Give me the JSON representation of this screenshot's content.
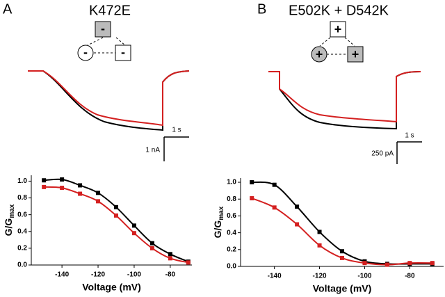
{
  "panels": [
    {
      "letter": "A",
      "title": "K472E",
      "signs": [
        "-",
        "-",
        "-"
      ],
      "scale_time": "1 s",
      "scale_current": "1 nA"
    },
    {
      "letter": "B",
      "title": "E502K + D542K",
      "signs": [
        "+",
        "+",
        "+"
      ],
      "scale_time": "1 s",
      "scale_current": "250 pA"
    }
  ],
  "chart_data": [
    {
      "type": "scatter",
      "xlabel": "Voltage (mV)",
      "ylabel": "G/G",
      "ylabel_sub": "max",
      "x": [
        -150,
        -140,
        -130,
        -120,
        -110,
        -100,
        -90,
        -80,
        -70
      ],
      "series": [
        {
          "color": "#000000",
          "values": [
            1.01,
            1.02,
            0.95,
            0.86,
            0.69,
            0.47,
            0.26,
            0.13,
            0.04
          ]
        },
        {
          "color": "#d42020",
          "values": [
            0.93,
            0.92,
            0.85,
            0.76,
            0.59,
            0.38,
            0.2,
            0.08,
            0.03
          ]
        }
      ],
      "xlim": [
        -157,
        -68
      ],
      "ylim": [
        0,
        1.07
      ],
      "xticks": [
        -140,
        -120,
        -100,
        -80
      ],
      "yticks": [
        {
          "value": 0,
          "label": "0.0"
        },
        0.2,
        0.4,
        0.6,
        0.8,
        {
          "value": 1,
          "label": "1.0"
        }
      ]
    },
    {
      "type": "scatter",
      "xlabel": "Voltage (mV)",
      "ylabel": "G/G",
      "ylabel_sub": "max",
      "x": [
        -150,
        -140,
        -130,
        -120,
        -110,
        -100,
        -90,
        -80,
        -70
      ],
      "series": [
        {
          "color": "#000000",
          "values": [
            1.0,
            0.97,
            0.71,
            0.41,
            0.18,
            0.06,
            0.03,
            0.03,
            0.03
          ]
        },
        {
          "color": "#d42020",
          "values": [
            0.81,
            0.7,
            0.5,
            0.25,
            0.1,
            0.04,
            0.02,
            0.04,
            0.04
          ]
        }
      ],
      "xlim": [
        -155,
        -65
      ],
      "ylim": [
        0,
        1.05
      ],
      "xticks": [
        -140,
        -120,
        -100,
        -80
      ],
      "yticks": [
        {
          "value": 0,
          "label": "0.0"
        },
        0.2,
        0.4,
        0.6,
        0.8,
        {
          "value": 1,
          "label": "1.0"
        }
      ]
    }
  ]
}
